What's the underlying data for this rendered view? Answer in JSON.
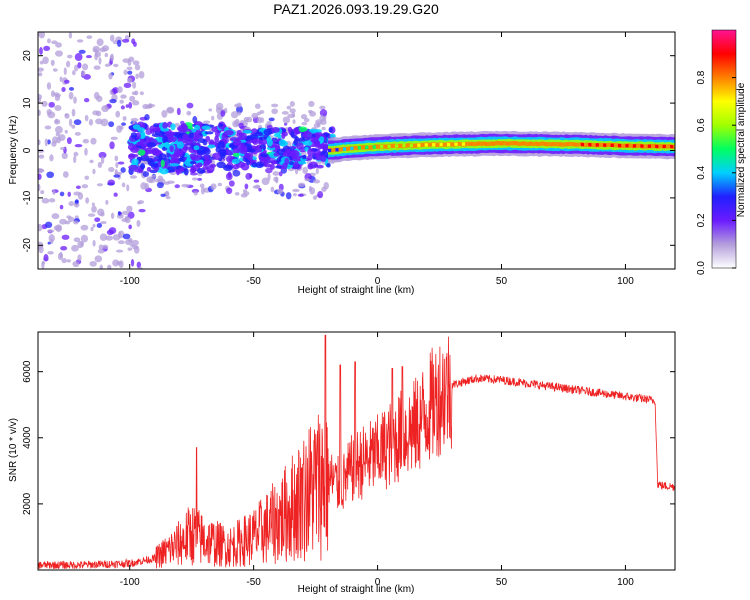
{
  "figure_title": "PAZ1.2026.093.19.29.G20",
  "chart_data": [
    {
      "type": "heatmap",
      "xlabel": "Height of straight line (km)",
      "ylabel": "Frequency (Hz)",
      "xlim": [
        -137,
        120
      ],
      "ylim": [
        -25,
        25
      ],
      "xticks": [
        -100,
        -50,
        0,
        50,
        100
      ],
      "yticks": [
        -20,
        -10,
        0,
        10,
        20
      ],
      "colorbar": {
        "label": "Normalized spectral amplitude",
        "range": [
          0,
          1
        ],
        "ticks": [
          "0.0",
          "0.2",
          "0.4",
          "0.6",
          "0.8"
        ],
        "colors": [
          "#ffffff",
          "#b39ddb",
          "#6a1bff",
          "#2020ff",
          "#00d0ff",
          "#00ff60",
          "#a0ff00",
          "#ffff00",
          "#ff8000",
          "#ff0000",
          "#ff1493"
        ]
      },
      "ridge": [
        {
          "x": -20,
          "y": 0.0,
          "amplitude": 0.3
        },
        {
          "x": -10,
          "y": 0.5,
          "amplitude": 0.45
        },
        {
          "x": 0,
          "y": 0.8,
          "amplitude": 0.55
        },
        {
          "x": 20,
          "y": 1.2,
          "amplitude": 0.7
        },
        {
          "x": 50,
          "y": 1.5,
          "amplitude": 0.8
        },
        {
          "x": 80,
          "y": 1.3,
          "amplitude": 0.85
        },
        {
          "x": 100,
          "y": 1.0,
          "amplitude": 0.9
        },
        {
          "x": 120,
          "y": 0.8,
          "amplitude": 0.95
        }
      ]
    },
    {
      "type": "line",
      "xlabel": "Height of straight line (km)",
      "ylabel": "SNR (10 * v/v)",
      "xlim": [
        -137,
        120
      ],
      "ylim": [
        0,
        7200
      ],
      "xticks": [
        -100,
        -50,
        0,
        50,
        100
      ],
      "yticks": [
        2000,
        4000,
        6000
      ],
      "color": "#ee2222",
      "x": [
        -137,
        -120,
        -100,
        -90,
        -80,
        -75,
        -70,
        -60,
        -50,
        -40,
        -30,
        -25,
        -20,
        -15,
        -10,
        -5,
        0,
        5,
        10,
        15,
        20,
        25,
        30,
        40,
        50,
        60,
        70,
        80,
        90,
        100,
        105,
        110,
        112,
        113,
        115,
        120
      ],
      "values": [
        150,
        150,
        200,
        350,
        800,
        1100,
        900,
        700,
        1000,
        1500,
        2200,
        2600,
        2800,
        2500,
        3100,
        3300,
        3500,
        3800,
        4100,
        4300,
        4800,
        5300,
        5600,
        5800,
        5750,
        5650,
        5550,
        5450,
        5350,
        5250,
        5200,
        5150,
        5100,
        2600,
        2550,
        2520
      ],
      "spikes": [
        {
          "x": -73,
          "y": 3700
        },
        {
          "x": -30,
          "y": 3200
        },
        {
          "x": -21,
          "y": 7100
        },
        {
          "x": -15,
          "y": 6200
        },
        {
          "x": -9,
          "y": 6300
        },
        {
          "x": 6,
          "y": 6100
        },
        {
          "x": 10,
          "y": 6150
        }
      ]
    }
  ]
}
